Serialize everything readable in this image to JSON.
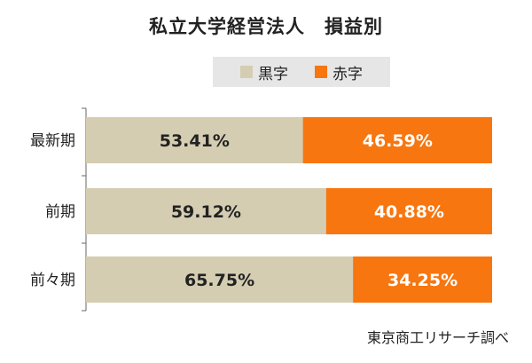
{
  "chart_data": {
    "type": "bar",
    "orientation": "horizontal",
    "stacked": true,
    "title": "私立大学経営法人　損益別",
    "categories": [
      "最新期",
      "前期",
      "前々期"
    ],
    "series": [
      {
        "name": "黒字",
        "values": [
          53.41,
          59.12,
          65.75
        ],
        "labels": [
          "53.41%",
          "59.12%",
          "65.75%"
        ],
        "color": "#d4cdb2"
      },
      {
        "name": "赤字",
        "values": [
          46.59,
          40.88,
          34.25
        ],
        "labels": [
          "46.59%",
          "40.88%",
          "34.25%"
        ],
        "color": "#f7760f"
      }
    ],
    "xlim": [
      0,
      100
    ],
    "legend": "top-center",
    "grid": false
  },
  "source": "東京商工リサーチ調べ"
}
